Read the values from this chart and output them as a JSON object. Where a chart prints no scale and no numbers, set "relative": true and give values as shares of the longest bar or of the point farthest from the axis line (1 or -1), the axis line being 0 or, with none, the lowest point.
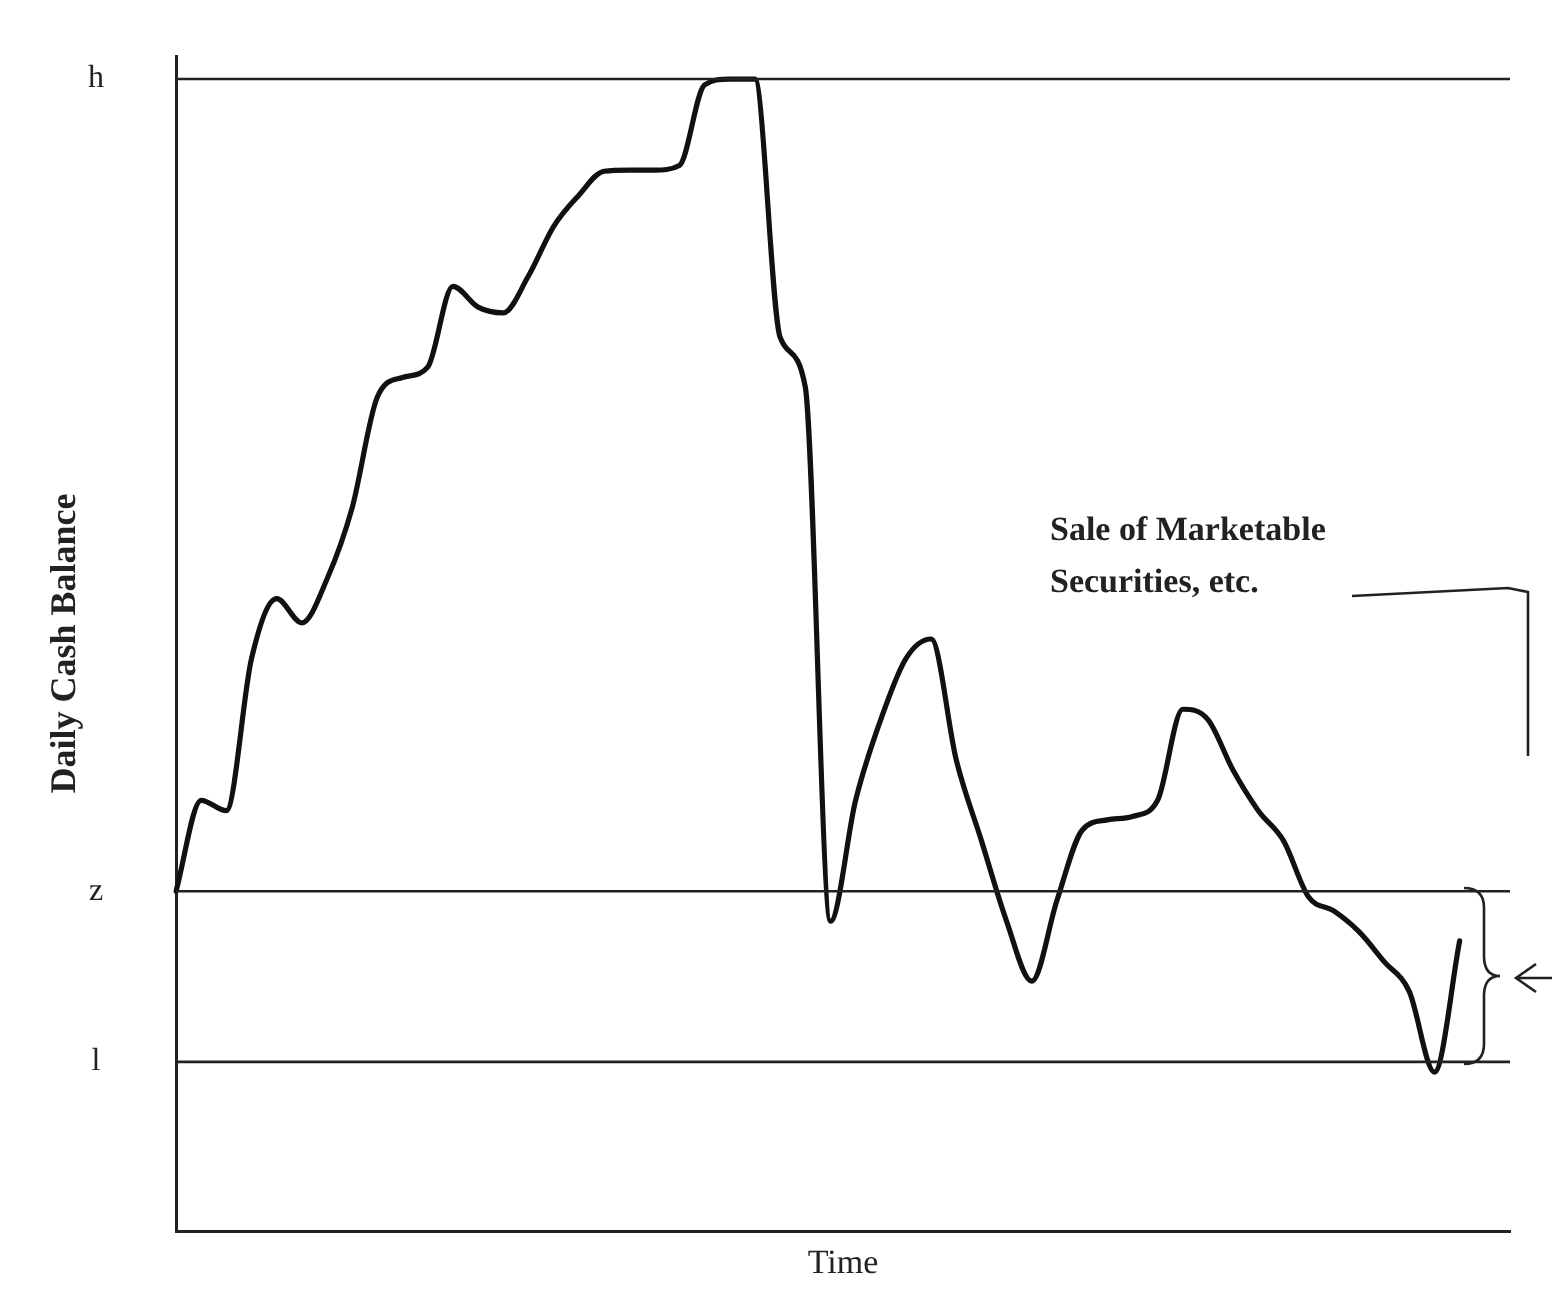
{
  "chart_data": {
    "type": "line",
    "relative": true,
    "ylabel": "Daily Cash Balance",
    "xlabel": "Time",
    "categories": [
      null,
      null,
      null,
      null,
      null,
      null,
      null,
      null,
      null,
      null,
      null,
      null,
      null,
      null,
      null,
      null,
      null,
      null,
      null,
      null,
      null,
      null,
      null,
      null,
      null,
      null,
      null,
      null,
      null,
      null,
      null,
      null,
      null,
      null,
      null,
      null,
      null,
      null,
      null,
      null,
      null,
      null,
      null,
      null,
      null,
      null,
      null,
      null,
      null,
      null,
      null,
      null,
      null,
      null
    ],
    "series": [
      {
        "color": "#111111",
        "values": [
          0.295,
          0.374,
          0.365,
          0.497,
          0.549,
          0.528,
          0.566,
          0.628,
          0.724,
          0.741,
          0.75,
          0.82,
          0.802,
          0.797,
          0.829,
          0.872,
          0.899,
          0.92,
          0.921,
          0.921,
          0.925,
          0.995,
          1,
          1,
          0.776,
          0.733,
          0.269,
          0.374,
          0.444,
          0.497,
          0.514,
          0.409,
          0.339,
          0.269,
          0.217,
          0.287,
          0.348,
          0.357,
          0.36,
          0.374,
          0.453,
          0.444,
          0.4,
          0.365,
          0.339,
          0.29,
          0.278,
          0.26,
          0.234,
          0.208,
          0.138,
          0.252,
          null,
          null
        ]
      }
    ],
    "ref_lines": [
      {
        "axis": "y",
        "value": 1,
        "label": "h",
        "color": "#222222"
      },
      {
        "axis": "y",
        "value": 0.295,
        "label": "z",
        "color": "#222222"
      },
      {
        "axis": "y",
        "value": 0.147,
        "label": "l",
        "color": "#222222"
      }
    ],
    "annotations": [
      "Sale of Marketable Securities, etc."
    ],
    "grid": false,
    "legend": false,
    "marker": "none",
    "line_style": "solid"
  }
}
